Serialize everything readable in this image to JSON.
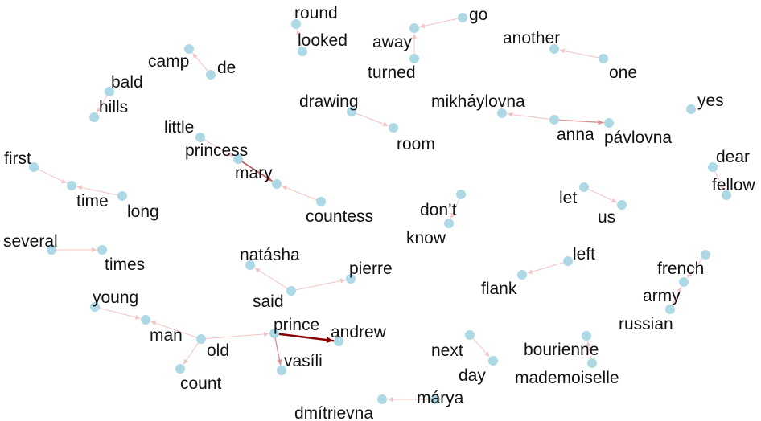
{
  "graph": {
    "type": "bigram-network",
    "colors": {
      "node": "#add8e6",
      "edge_light": "#f2c4c4",
      "edge_strong": "#8b0000",
      "label": "#111111"
    },
    "nodes": [
      {
        "id": "round",
        "label": "round"
      },
      {
        "id": "looked",
        "label": "looked"
      },
      {
        "id": "go",
        "label": "go"
      },
      {
        "id": "away",
        "label": "away"
      },
      {
        "id": "turned",
        "label": "turned"
      },
      {
        "id": "another",
        "label": "another"
      },
      {
        "id": "one",
        "label": "one"
      },
      {
        "id": "camp",
        "label": "camp"
      },
      {
        "id": "de",
        "label": "de"
      },
      {
        "id": "bald",
        "label": "bald"
      },
      {
        "id": "hills",
        "label": "hills"
      },
      {
        "id": "drawing",
        "label": "drawing"
      },
      {
        "id": "room",
        "label": "room"
      },
      {
        "id": "mikhaylovna",
        "label": "mikháylovna"
      },
      {
        "id": "anna",
        "label": "anna"
      },
      {
        "id": "pavlovna",
        "label": "pávlovna"
      },
      {
        "id": "yes",
        "label": "yes"
      },
      {
        "id": "little",
        "label": "little"
      },
      {
        "id": "princess",
        "label": "princess"
      },
      {
        "id": "mary",
        "label": "mary"
      },
      {
        "id": "countess",
        "label": "countess"
      },
      {
        "id": "first",
        "label": "first"
      },
      {
        "id": "time",
        "label": "time"
      },
      {
        "id": "long",
        "label": "long"
      },
      {
        "id": "dear",
        "label": "dear"
      },
      {
        "id": "fellow",
        "label": "fellow"
      },
      {
        "id": "dont",
        "label": "don’t"
      },
      {
        "id": "know",
        "label": "know"
      },
      {
        "id": "let",
        "label": "let"
      },
      {
        "id": "us",
        "label": "us"
      },
      {
        "id": "several",
        "label": "several"
      },
      {
        "id": "times",
        "label": "times"
      },
      {
        "id": "natasha",
        "label": "natásha"
      },
      {
        "id": "pierre",
        "label": "pierre"
      },
      {
        "id": "said",
        "label": "said"
      },
      {
        "id": "left",
        "label": "left"
      },
      {
        "id": "flank",
        "label": "flank"
      },
      {
        "id": "french",
        "label": "french"
      },
      {
        "id": "army",
        "label": "army"
      },
      {
        "id": "russian",
        "label": "russian"
      },
      {
        "id": "young",
        "label": "young"
      },
      {
        "id": "man",
        "label": "man"
      },
      {
        "id": "old",
        "label": "old"
      },
      {
        "id": "prince",
        "label": "prince"
      },
      {
        "id": "andrew",
        "label": "andrew"
      },
      {
        "id": "vasili",
        "label": "vasíli"
      },
      {
        "id": "count",
        "label": "count"
      },
      {
        "id": "next",
        "label": "next"
      },
      {
        "id": "day",
        "label": "day"
      },
      {
        "id": "bourienne",
        "label": "bourienne"
      },
      {
        "id": "mademoiselle",
        "label": "mademoiselle"
      },
      {
        "id": "marya",
        "label": "márya"
      },
      {
        "id": "dmitrievna",
        "label": "dmítrievna"
      }
    ],
    "edges": [
      {
        "from": "looked",
        "to": "round",
        "weight": 1
      },
      {
        "from": "go",
        "to": "away",
        "weight": 1
      },
      {
        "from": "turned",
        "to": "away",
        "weight": 1
      },
      {
        "from": "one",
        "to": "another",
        "weight": 1
      },
      {
        "from": "de",
        "to": "camp",
        "weight": 1
      },
      {
        "from": "bald",
        "to": "hills",
        "weight": 1
      },
      {
        "from": "drawing",
        "to": "room",
        "weight": 1
      },
      {
        "from": "anna",
        "to": "mikhaylovna",
        "weight": 1
      },
      {
        "from": "anna",
        "to": "pavlovna",
        "weight": 2
      },
      {
        "from": "little",
        "to": "princess",
        "weight": 1
      },
      {
        "from": "princess",
        "to": "mary",
        "weight": 3
      },
      {
        "from": "countess",
        "to": "mary",
        "weight": 1
      },
      {
        "from": "first",
        "to": "time",
        "weight": 1
      },
      {
        "from": "long",
        "to": "time",
        "weight": 1
      },
      {
        "from": "dear",
        "to": "fellow",
        "weight": 1
      },
      {
        "from": "dont",
        "to": "know",
        "weight": 1
      },
      {
        "from": "let",
        "to": "us",
        "weight": 1
      },
      {
        "from": "several",
        "to": "times",
        "weight": 1
      },
      {
        "from": "said",
        "to": "natasha",
        "weight": 1
      },
      {
        "from": "said",
        "to": "pierre",
        "weight": 1
      },
      {
        "from": "left",
        "to": "flank",
        "weight": 1
      },
      {
        "from": "french",
        "to": "army",
        "weight": 1
      },
      {
        "from": "russian",
        "to": "army",
        "weight": 1
      },
      {
        "from": "young",
        "to": "man",
        "weight": 1
      },
      {
        "from": "old",
        "to": "man",
        "weight": 1
      },
      {
        "from": "old",
        "to": "prince",
        "weight": 1
      },
      {
        "from": "old",
        "to": "count",
        "weight": 1
      },
      {
        "from": "prince",
        "to": "andrew",
        "weight": 5
      },
      {
        "from": "prince",
        "to": "vasili",
        "weight": 2
      },
      {
        "from": "next",
        "to": "day",
        "weight": 1
      },
      {
        "from": "mademoiselle",
        "to": "bourienne",
        "weight": 1
      },
      {
        "from": "marya",
        "to": "dmitrievna",
        "weight": 1
      }
    ]
  }
}
